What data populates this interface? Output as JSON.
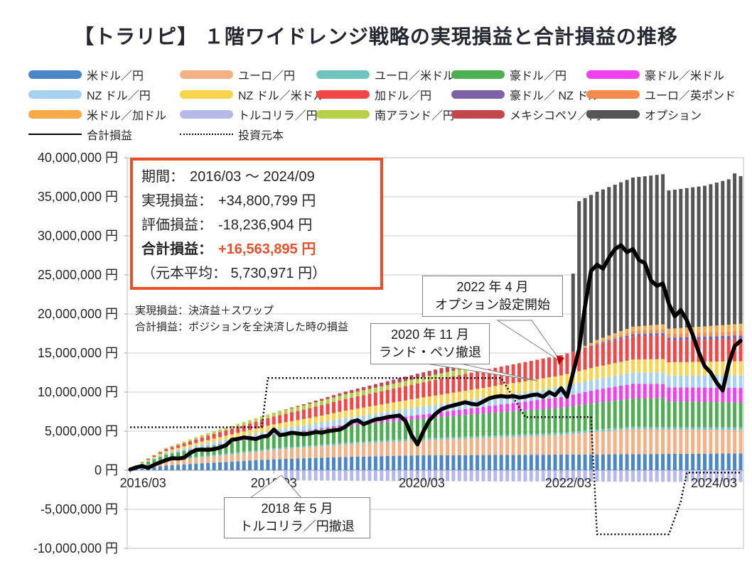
{
  "title": "【トラリピ】 １階ワイドレンジ戦略の実現損益と合計損益の推移",
  "info_box": {
    "period_label": "期間：",
    "period_value": "2016/03 ～ 2024/09",
    "realized_label": "実現損益：",
    "realized_value": "+34,800,799 円",
    "valuation_label": "評価損益：",
    "valuation_value": "-18,236,904 円",
    "total_label": "合計損益：",
    "total_value": "+16,563,895 円",
    "principal_avg": "（元本平均： 5,730,971 円）",
    "accent_color": "#e8502a"
  },
  "notes": {
    "line1": "実現損益：決済益＋スワップ",
    "line2": "合計損益：ポジションを全決済した時の損益"
  },
  "annotations": {
    "option_start": {
      "line1": "2022 年 4 月",
      "line2": "オプション設定開始"
    },
    "rand_peso_exit": {
      "line1": "2020 年 11 月",
      "line2": "ランド・ペソ撤退"
    },
    "try_exit": {
      "line1": "2018 年 5 月",
      "line2": "トルコリラ／円撤退"
    }
  },
  "legend": {
    "line_items": [
      {
        "id": "total-profit",
        "label": "合計損益",
        "style": "solid",
        "color": "#000000"
      },
      {
        "id": "invested-principal",
        "label": "投資元本",
        "style": "dotted",
        "color": "#000000"
      }
    ]
  },
  "chart_data": {
    "type": "bar",
    "subtype": "stacked-monthly-bars-with-line-overlay",
    "period_start": "2016/03",
    "period_end": "2024/09",
    "months_count": 103,
    "unit_scale_jpy": 1000000,
    "y_axis": {
      "min_m": -10,
      "max_m": 40,
      "step_m": 5,
      "label_suffix": " 円",
      "grid": true
    },
    "x_ticks": [
      {
        "month_index": 0,
        "label": "2016/03",
        "dx": 18
      },
      {
        "month_index": 24,
        "label": "2018/03",
        "dx": 0
      },
      {
        "month_index": 48,
        "label": "2020/03",
        "dx": 6
      },
      {
        "month_index": 72,
        "label": "2022/03",
        "dx": 10
      },
      {
        "month_index": 96,
        "label": "2024/03",
        "dx": 13
      }
    ],
    "series": [
      {
        "id": "usd-jpy",
        "name": "米ドル／円",
        "color": "#4a86c8",
        "keyframes": [
          [
            0,
            0.08
          ],
          [
            6,
            0.6
          ],
          [
            12,
            0.9
          ],
          [
            24,
            1.4
          ],
          [
            36,
            1.7
          ],
          [
            48,
            1.9
          ],
          [
            72,
            2.0
          ],
          [
            102,
            2.15
          ]
        ]
      },
      {
        "id": "eur-jpy",
        "name": "ユーロ／円",
        "color": "#f5b183",
        "keyframes": [
          [
            0,
            0.04
          ],
          [
            6,
            0.55
          ],
          [
            12,
            0.75
          ],
          [
            24,
            1.2
          ],
          [
            36,
            1.6
          ],
          [
            48,
            1.9
          ],
          [
            60,
            2.2
          ],
          [
            72,
            2.5
          ],
          [
            78,
            2.9
          ],
          [
            84,
            3.2
          ],
          [
            90,
            3.1
          ],
          [
            102,
            3.0
          ]
        ]
      },
      {
        "id": "eur-usd",
        "name": "ユーロ／米ドル",
        "color": "#6fc4bf",
        "keyframes": [
          [
            0,
            0.02
          ],
          [
            6,
            0.12
          ],
          [
            24,
            0.2
          ],
          [
            48,
            0.25
          ],
          [
            72,
            0.28
          ],
          [
            102,
            0.35
          ]
        ]
      },
      {
        "id": "aud-jpy",
        "name": "豪ドル／円",
        "color": "#4cb050",
        "keyframes": [
          [
            0,
            0.05
          ],
          [
            6,
            0.75
          ],
          [
            12,
            1.1
          ],
          [
            24,
            1.7
          ],
          [
            36,
            2.1
          ],
          [
            48,
            2.5
          ],
          [
            60,
            2.9
          ],
          [
            72,
            3.2
          ],
          [
            84,
            3.6
          ],
          [
            89,
            3.7
          ],
          [
            90,
            3.3
          ],
          [
            102,
            3.15
          ]
        ]
      },
      {
        "id": "aud-usd",
        "name": "豪ドル／米ドル",
        "color": "#f23ff2",
        "keyframes": [
          [
            0,
            0
          ],
          [
            30,
            0.1
          ],
          [
            36,
            0.25
          ],
          [
            48,
            0.5
          ],
          [
            60,
            0.9
          ],
          [
            72,
            1.4
          ],
          [
            78,
            1.7
          ],
          [
            84,
            1.9
          ],
          [
            90,
            1.8
          ],
          [
            102,
            1.9
          ]
        ]
      },
      {
        "id": "nzd-jpy",
        "name": "NZ ドル／円",
        "color": "#a6d2f2",
        "keyframes": [
          [
            0,
            0
          ],
          [
            6,
            0.2
          ],
          [
            12,
            0.35
          ],
          [
            24,
            0.6
          ],
          [
            36,
            0.8
          ],
          [
            48,
            1.0
          ],
          [
            60,
            1.15
          ],
          [
            72,
            1.3
          ],
          [
            84,
            1.45
          ],
          [
            102,
            1.6
          ]
        ]
      },
      {
        "id": "nzd-usd",
        "name": "NZ ドル／米ドル",
        "color": "#fbd44e",
        "keyframes": [
          [
            0,
            0
          ],
          [
            6,
            0.22
          ],
          [
            12,
            0.4
          ],
          [
            24,
            0.7
          ],
          [
            36,
            0.95
          ],
          [
            48,
            1.15
          ],
          [
            60,
            1.3
          ],
          [
            72,
            1.45
          ],
          [
            84,
            1.65
          ],
          [
            102,
            1.8
          ]
        ]
      },
      {
        "id": "cad-jpy",
        "name": "加ドル／円",
        "color": "#f04848",
        "keyframes": [
          [
            0,
            0
          ],
          [
            6,
            0.25
          ],
          [
            12,
            0.5
          ],
          [
            24,
            1.0
          ],
          [
            36,
            1.5
          ],
          [
            48,
            1.9
          ],
          [
            60,
            2.3
          ],
          [
            72,
            2.6
          ],
          [
            84,
            2.95
          ],
          [
            89,
            3.0
          ],
          [
            90,
            2.8
          ],
          [
            102,
            2.85
          ]
        ]
      },
      {
        "id": "aud-nzd",
        "name": "豪ドル／ NZ ドル",
        "color": "#7b62a8",
        "keyframes": [
          [
            0,
            0
          ],
          [
            74,
            0
          ],
          [
            78,
            0.15
          ],
          [
            84,
            0.3
          ],
          [
            90,
            0.35
          ],
          [
            102,
            0.45
          ]
        ]
      },
      {
        "id": "eur-gbp",
        "name": "ユーロ／英ポンド",
        "color": "#f58a4e",
        "keyframes": [
          [
            0,
            0
          ],
          [
            74,
            0
          ],
          [
            78,
            0.2
          ],
          [
            84,
            0.4
          ],
          [
            90,
            0.5
          ],
          [
            102,
            0.6
          ]
        ]
      },
      {
        "id": "usd-cad",
        "name": "米ドル／加ドル",
        "color": "#f8aa4a",
        "keyframes": [
          [
            0,
            0
          ],
          [
            74,
            0
          ],
          [
            78,
            0.3
          ],
          [
            84,
            0.55
          ],
          [
            90,
            0.65
          ],
          [
            96,
            0.75
          ],
          [
            102,
            0.9
          ]
        ]
      },
      {
        "id": "try-jpy",
        "name": "トルコリラ／円",
        "color": "#b8b8ea",
        "keyframes": [
          [
            0,
            0
          ],
          [
            25,
            0
          ],
          [
            26,
            -1.3
          ],
          [
            48,
            -1.4
          ],
          [
            102,
            -1.5
          ]
        ]
      },
      {
        "id": "zar-jpy",
        "name": "南アランド／円",
        "color": "#b8d048",
        "keyframes": [
          [
            0,
            0.02
          ],
          [
            6,
            0.15
          ],
          [
            12,
            0.3
          ],
          [
            24,
            0.5
          ],
          [
            36,
            0.6
          ],
          [
            48,
            0.65
          ],
          [
            56,
            0.7
          ],
          [
            57,
            0
          ],
          [
            102,
            0
          ]
        ]
      },
      {
        "id": "mxn-jpy",
        "name": "メキシコペソ／円",
        "color": "#c2484e",
        "keyframes": [
          [
            0,
            0
          ],
          [
            24,
            0
          ],
          [
            27,
            0.1
          ],
          [
            36,
            0.35
          ],
          [
            48,
            0.6
          ],
          [
            56,
            0.75
          ],
          [
            57,
            0
          ],
          [
            102,
            0
          ]
        ]
      },
      {
        "id": "option",
        "name": "オプション",
        "color": "#555555",
        "keyframes": [
          [
            0,
            0
          ],
          [
            73,
            0
          ],
          [
            74,
            10
          ],
          [
            75,
            18.9
          ],
          [
            89,
            19.2
          ],
          [
            90,
            17.7
          ],
          [
            96,
            18.0
          ],
          [
            100,
            18.6
          ],
          [
            101,
            19.3
          ],
          [
            102,
            18.9
          ]
        ]
      }
    ],
    "total_line": {
      "id": "total-profit",
      "name": "合計損益",
      "color": "#000000",
      "keyframes": [
        [
          0,
          0.1
        ],
        [
          1,
          0.35
        ],
        [
          2,
          0.55
        ],
        [
          3,
          0.3
        ],
        [
          4,
          0.7
        ],
        [
          5,
          1.0
        ],
        [
          6,
          1.3
        ],
        [
          7,
          1.55
        ],
        [
          8,
          1.5
        ],
        [
          9,
          1.6
        ],
        [
          10,
          2.2
        ],
        [
          11,
          2.6
        ],
        [
          12,
          2.65
        ],
        [
          13,
          2.6
        ],
        [
          14,
          2.7
        ],
        [
          15,
          2.9
        ],
        [
          16,
          3.2
        ],
        [
          17,
          3.9
        ],
        [
          18,
          4.0
        ],
        [
          19,
          4.2
        ],
        [
          20,
          4.1
        ],
        [
          21,
          4.0
        ],
        [
          22,
          4.3
        ],
        [
          23,
          4.4
        ],
        [
          24,
          5.2
        ],
        [
          25,
          4.5
        ],
        [
          26,
          4.6
        ],
        [
          27,
          4.8
        ],
        [
          28,
          4.7
        ],
        [
          29,
          4.6
        ],
        [
          30,
          4.7
        ],
        [
          31,
          4.9
        ],
        [
          32,
          4.8
        ],
        [
          33,
          5.0
        ],
        [
          34,
          5.1
        ],
        [
          35,
          5.2
        ],
        [
          36,
          5.6
        ],
        [
          37,
          6.2
        ],
        [
          38,
          6.4
        ],
        [
          39,
          5.9
        ],
        [
          40,
          6.2
        ],
        [
          41,
          6.5
        ],
        [
          42,
          6.6
        ],
        [
          43,
          6.8
        ],
        [
          44,
          6.9
        ],
        [
          45,
          7.0
        ],
        [
          46,
          6.3
        ],
        [
          47,
          4.5
        ],
        [
          48,
          3.3
        ],
        [
          49,
          5.0
        ],
        [
          50,
          6.4
        ],
        [
          51,
          7.2
        ],
        [
          52,
          7.8
        ],
        [
          53,
          8.1
        ],
        [
          54,
          8.3
        ],
        [
          55,
          8.5
        ],
        [
          56,
          8.7
        ],
        [
          57,
          8.5
        ],
        [
          58,
          8.4
        ],
        [
          59,
          8.8
        ],
        [
          60,
          9.2
        ],
        [
          61,
          9.4
        ],
        [
          62,
          9.5
        ],
        [
          63,
          9.4
        ],
        [
          64,
          9.5
        ],
        [
          65,
          9.3
        ],
        [
          66,
          9.4
        ],
        [
          67,
          9.6
        ],
        [
          68,
          9.7
        ],
        [
          69,
          9.4
        ],
        [
          70,
          10.0
        ],
        [
          71,
          9.6
        ],
        [
          72,
          10.5
        ],
        [
          73,
          9.4
        ],
        [
          74,
          12.5
        ],
        [
          75,
          15.5
        ],
        [
          76,
          21.0
        ],
        [
          77,
          25.5
        ],
        [
          78,
          26.3
        ],
        [
          79,
          25.8
        ],
        [
          80,
          27.2
        ],
        [
          81,
          28.3
        ],
        [
          82,
          28.8
        ],
        [
          83,
          27.9
        ],
        [
          84,
          28.3
        ],
        [
          85,
          26.9
        ],
        [
          86,
          26.5
        ],
        [
          87,
          24.3
        ],
        [
          88,
          23.6
        ],
        [
          89,
          23.9
        ],
        [
          90,
          21.3
        ],
        [
          91,
          19.7
        ],
        [
          92,
          20.5
        ],
        [
          93,
          19.2
        ],
        [
          94,
          17.3
        ],
        [
          95,
          15.1
        ],
        [
          96,
          13.3
        ],
        [
          97,
          12.5
        ],
        [
          98,
          11.2
        ],
        [
          99,
          10.2
        ],
        [
          100,
          13.6
        ],
        [
          101,
          15.9
        ],
        [
          102,
          16.56
        ]
      ]
    },
    "principal_line": {
      "id": "invested-principal",
      "name": "投資元本",
      "color": "#000000",
      "style": "dotted",
      "keyframes": [
        [
          0,
          5.5
        ],
        [
          22,
          5.5
        ],
        [
          23,
          11.8
        ],
        [
          62,
          11.8
        ],
        [
          66,
          6.8
        ],
        [
          77,
          6.8
        ],
        [
          78,
          -8.2
        ],
        [
          90,
          -8.2
        ],
        [
          92,
          -4.0
        ],
        [
          93,
          -0.3
        ],
        [
          102,
          -0.3
        ]
      ]
    }
  }
}
